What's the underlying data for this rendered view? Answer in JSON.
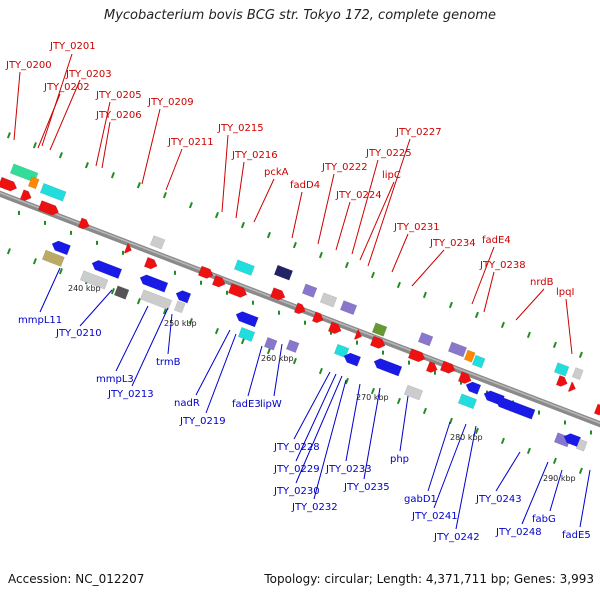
{
  "title": "Mycobacterium bovis BCG str. Tokyo 172, complete genome",
  "footer": {
    "accession": "Accession: NC_012207",
    "topology": "Topology: circular; Length: 4,371,711 bp; Genes: 3,993"
  },
  "colors": {
    "forward": "#ee1111",
    "reverse": "#1a1ae6",
    "backbone": "#888888",
    "tick": "#228b22",
    "label_forward": "#cc0000",
    "label_reverse": "#0000cc"
  },
  "scale_labels": [
    "240 kbp",
    "250 kbp",
    "260 kbp",
    "270 kbp",
    "280 kbp",
    "290 kbp"
  ],
  "forward_labels": [
    "JTY_0200",
    "JTY_0201",
    "JTY_0202",
    "JTY_0203",
    "JTY_0205",
    "JTY_0206",
    "JTY_0209",
    "JTY_0211",
    "JTY_0215",
    "JTY_0216",
    "pckA",
    "fadD4",
    "JTY_0222",
    "JTY_0224",
    "lipC",
    "JTY_0225",
    "JTY_0227",
    "JTY_0231",
    "JTY_0234",
    "fadE4",
    "JTY_0238",
    "nrdB",
    "lpqI"
  ],
  "reverse_labels": [
    "mmpL11",
    "JTY_0210",
    "mmpL3",
    "JTY_0213",
    "trmB",
    "nadR",
    "JTY_0219",
    "fadE3",
    "lipW",
    "JTY_0228",
    "JTY_0229",
    "JTY_0230",
    "JTY_0232",
    "JTY_0233",
    "JTY_0235",
    "php",
    "gabD1",
    "JTY_0241",
    "JTY_0242",
    "JTY_0243",
    "JTY_0248",
    "fabG",
    "fadE5"
  ]
}
